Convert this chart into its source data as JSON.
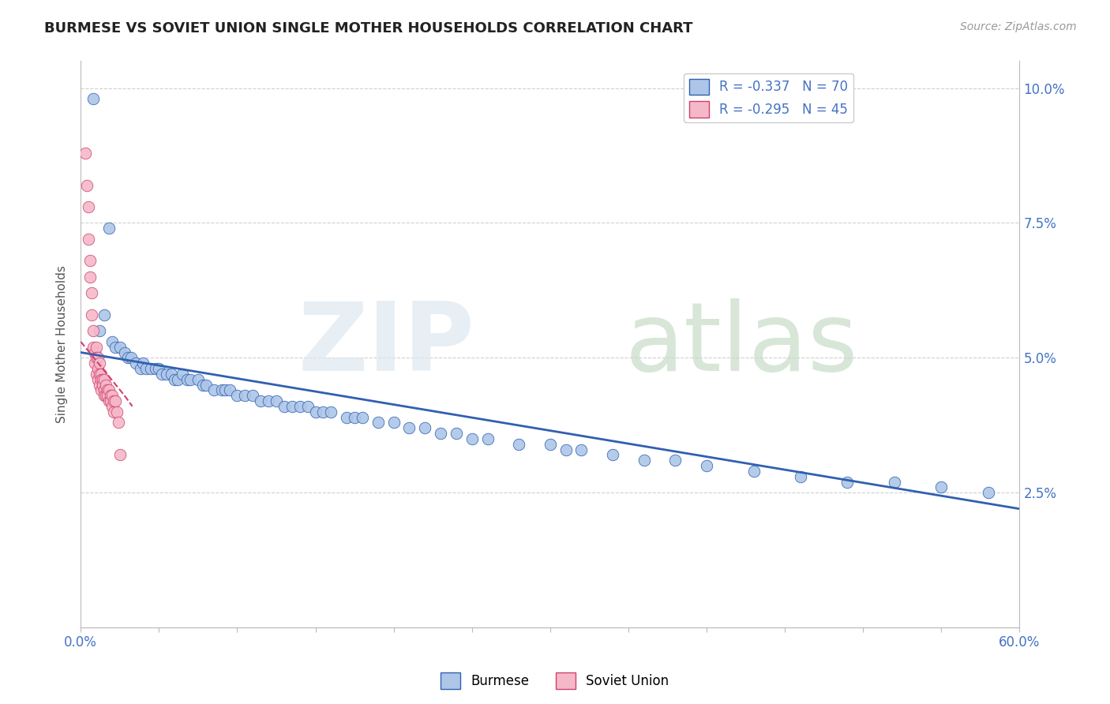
{
  "title": "BURMESE VS SOVIET UNION SINGLE MOTHER HOUSEHOLDS CORRELATION CHART",
  "source": "Source: ZipAtlas.com",
  "ylabel": "Single Mother Households",
  "yticks": [
    0.0,
    0.025,
    0.05,
    0.075,
    0.1
  ],
  "ytick_labels_right": [
    "",
    "2.5%",
    "5.0%",
    "7.5%",
    "10.0%"
  ],
  "xlim": [
    0.0,
    0.6
  ],
  "ylim": [
    0.0,
    0.105
  ],
  "burmese_R": -0.337,
  "burmese_N": 70,
  "soviet_R": -0.295,
  "soviet_N": 45,
  "burmese_color": "#adc6e8",
  "soviet_color": "#f5b8c8",
  "burmese_line_color": "#3060b0",
  "soviet_line_color": "#d04070",
  "burmese_x": [
    0.008,
    0.012,
    0.015,
    0.018,
    0.02,
    0.022,
    0.025,
    0.028,
    0.03,
    0.032,
    0.035,
    0.038,
    0.04,
    0.042,
    0.045,
    0.048,
    0.05,
    0.052,
    0.055,
    0.058,
    0.06,
    0.062,
    0.065,
    0.068,
    0.07,
    0.075,
    0.078,
    0.08,
    0.085,
    0.09,
    0.092,
    0.095,
    0.1,
    0.105,
    0.11,
    0.115,
    0.12,
    0.125,
    0.13,
    0.135,
    0.14,
    0.145,
    0.15,
    0.155,
    0.16,
    0.17,
    0.175,
    0.18,
    0.19,
    0.2,
    0.21,
    0.22,
    0.23,
    0.24,
    0.25,
    0.26,
    0.28,
    0.3,
    0.31,
    0.32,
    0.34,
    0.36,
    0.38,
    0.4,
    0.43,
    0.46,
    0.49,
    0.52,
    0.55,
    0.58
  ],
  "burmese_y": [
    0.098,
    0.055,
    0.058,
    0.074,
    0.053,
    0.052,
    0.052,
    0.051,
    0.05,
    0.05,
    0.049,
    0.048,
    0.049,
    0.048,
    0.048,
    0.048,
    0.048,
    0.047,
    0.047,
    0.047,
    0.046,
    0.046,
    0.047,
    0.046,
    0.046,
    0.046,
    0.045,
    0.045,
    0.044,
    0.044,
    0.044,
    0.044,
    0.043,
    0.043,
    0.043,
    0.042,
    0.042,
    0.042,
    0.041,
    0.041,
    0.041,
    0.041,
    0.04,
    0.04,
    0.04,
    0.039,
    0.039,
    0.039,
    0.038,
    0.038,
    0.037,
    0.037,
    0.036,
    0.036,
    0.035,
    0.035,
    0.034,
    0.034,
    0.033,
    0.033,
    0.032,
    0.031,
    0.031,
    0.03,
    0.029,
    0.028,
    0.027,
    0.027,
    0.026,
    0.025
  ],
  "soviet_x": [
    0.003,
    0.004,
    0.005,
    0.005,
    0.006,
    0.006,
    0.007,
    0.007,
    0.008,
    0.008,
    0.009,
    0.009,
    0.01,
    0.01,
    0.01,
    0.011,
    0.011,
    0.011,
    0.012,
    0.012,
    0.012,
    0.013,
    0.013,
    0.013,
    0.014,
    0.014,
    0.015,
    0.015,
    0.015,
    0.016,
    0.016,
    0.017,
    0.017,
    0.018,
    0.018,
    0.019,
    0.019,
    0.02,
    0.02,
    0.021,
    0.021,
    0.022,
    0.023,
    0.024,
    0.025
  ],
  "soviet_y": [
    0.088,
    0.082,
    0.078,
    0.072,
    0.068,
    0.065,
    0.062,
    0.058,
    0.055,
    0.052,
    0.051,
    0.049,
    0.052,
    0.05,
    0.047,
    0.05,
    0.048,
    0.046,
    0.049,
    0.047,
    0.045,
    0.047,
    0.046,
    0.044,
    0.046,
    0.045,
    0.046,
    0.044,
    0.043,
    0.045,
    0.043,
    0.044,
    0.043,
    0.044,
    0.042,
    0.043,
    0.042,
    0.043,
    0.041,
    0.042,
    0.04,
    0.042,
    0.04,
    0.038,
    0.032
  ],
  "burmese_trend_x": [
    0.0,
    0.6
  ],
  "burmese_trend_y": [
    0.051,
    0.022
  ],
  "soviet_trend_x": [
    0.0,
    0.028
  ],
  "soviet_trend_y": [
    0.053,
    0.043
  ]
}
